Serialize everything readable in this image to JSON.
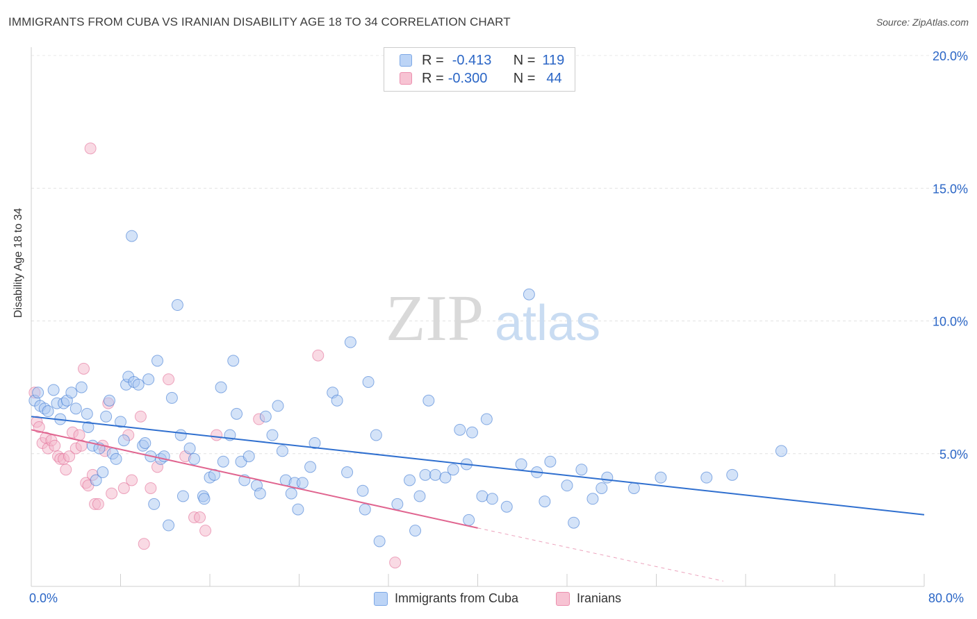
{
  "title": "IMMIGRANTS FROM CUBA VS IRANIAN DISABILITY AGE 18 TO 34 CORRELATION CHART",
  "source": "Source: ZipAtlas.com",
  "watermark": {
    "zip": "ZIP",
    "atlas": "atlas"
  },
  "legend_top": {
    "rows": [
      {
        "r_label": "R =",
        "r_value": "-0.413",
        "n_label": "N =",
        "n_value": "119"
      },
      {
        "r_label": "R =",
        "r_value": "-0.300",
        "n_label": "N =",
        "n_value": "44"
      }
    ]
  },
  "legend_bottom": {
    "series1": "Immigrants from Cuba",
    "series2": "Iranians"
  },
  "x_axis": {
    "min_label": "0.0%",
    "max_label": "80.0%"
  },
  "colors": {
    "blue": "#2f6fcf",
    "blue_fill": "#a9c8f2",
    "pink": "#e0648f",
    "pink_fill": "#f4b6ca",
    "tick_text": "#2b66c6"
  },
  "chart_data": {
    "type": "scatter",
    "title": "IMMIGRANTS FROM CUBA VS IRANIAN DISABILITY AGE 18 TO 34 CORRELATION CHART",
    "xlabel": "",
    "ylabel": "Disability Age 18 to 34",
    "xlim": [
      0,
      80
    ],
    "ylim": [
      0,
      20
    ],
    "y_ticks": [
      5,
      10,
      15,
      20
    ],
    "y_tick_labels": [
      "5.0%",
      "10.0%",
      "15.0%",
      "20.0%"
    ],
    "grid": true,
    "legend_position": "bottom",
    "series": [
      {
        "name": "Immigrants from Cuba",
        "color": "#2f6fcf",
        "r": -0.413,
        "n": 119,
        "trend": {
          "x": [
            0,
            80
          ],
          "y": [
            6.4,
            2.7
          ]
        },
        "points": [
          [
            0.3,
            7.0
          ],
          [
            0.6,
            7.3
          ],
          [
            0.8,
            6.8
          ],
          [
            1.2,
            6.7
          ],
          [
            1.5,
            6.6
          ],
          [
            2.0,
            7.4
          ],
          [
            2.3,
            6.9
          ],
          [
            2.6,
            6.3
          ],
          [
            2.9,
            6.9
          ],
          [
            3.2,
            7.0
          ],
          [
            3.6,
            7.3
          ],
          [
            4.0,
            6.7
          ],
          [
            4.5,
            7.5
          ],
          [
            5.1,
            6.0
          ],
          [
            5.0,
            6.5
          ],
          [
            5.5,
            5.3
          ],
          [
            5.8,
            4.0
          ],
          [
            6.1,
            5.2
          ],
          [
            6.4,
            4.3
          ],
          [
            6.7,
            6.4
          ],
          [
            7.0,
            7.0
          ],
          [
            7.3,
            5.0
          ],
          [
            7.6,
            4.8
          ],
          [
            8.0,
            6.2
          ],
          [
            8.3,
            5.5
          ],
          [
            8.5,
            7.6
          ],
          [
            8.7,
            7.9
          ],
          [
            9.0,
            13.2
          ],
          [
            9.2,
            7.7
          ],
          [
            9.6,
            7.6
          ],
          [
            10.0,
            5.3
          ],
          [
            10.2,
            5.4
          ],
          [
            10.5,
            7.8
          ],
          [
            10.7,
            4.9
          ],
          [
            11.0,
            3.1
          ],
          [
            11.3,
            8.5
          ],
          [
            11.6,
            4.8
          ],
          [
            11.9,
            4.9
          ],
          [
            12.3,
            2.3
          ],
          [
            12.6,
            7.1
          ],
          [
            13.1,
            10.6
          ],
          [
            13.4,
            5.7
          ],
          [
            13.6,
            3.4
          ],
          [
            14.2,
            5.2
          ],
          [
            14.6,
            4.8
          ],
          [
            15.4,
            3.4
          ],
          [
            15.5,
            3.3
          ],
          [
            16.0,
            4.1
          ],
          [
            16.4,
            4.2
          ],
          [
            17.2,
            4.7
          ],
          [
            17.0,
            7.5
          ],
          [
            17.8,
            5.7
          ],
          [
            18.1,
            8.5
          ],
          [
            18.4,
            6.5
          ],
          [
            18.8,
            4.7
          ],
          [
            19.1,
            4.0
          ],
          [
            19.5,
            4.9
          ],
          [
            20.2,
            3.8
          ],
          [
            20.5,
            3.5
          ],
          [
            21.0,
            6.4
          ],
          [
            21.6,
            5.7
          ],
          [
            22.1,
            6.8
          ],
          [
            22.8,
            4.0
          ],
          [
            22.5,
            5.1
          ],
          [
            23.3,
            3.5
          ],
          [
            23.6,
            3.9
          ],
          [
            23.9,
            2.9
          ],
          [
            24.3,
            3.9
          ],
          [
            25.0,
            4.5
          ],
          [
            25.4,
            5.4
          ],
          [
            27.0,
            7.3
          ],
          [
            27.4,
            7.0
          ],
          [
            28.3,
            4.3
          ],
          [
            28.6,
            9.2
          ],
          [
            29.7,
            3.6
          ],
          [
            29.9,
            2.9
          ],
          [
            30.2,
            7.7
          ],
          [
            30.9,
            5.7
          ],
          [
            31.2,
            1.7
          ],
          [
            32.8,
            3.1
          ],
          [
            33.9,
            4.0
          ],
          [
            34.4,
            2.1
          ],
          [
            34.8,
            3.4
          ],
          [
            35.3,
            4.2
          ],
          [
            35.6,
            7.0
          ],
          [
            36.2,
            4.2
          ],
          [
            37.1,
            4.1
          ],
          [
            37.8,
            4.4
          ],
          [
            38.4,
            5.9
          ],
          [
            39.0,
            4.6
          ],
          [
            39.5,
            5.8
          ],
          [
            39.2,
            2.5
          ],
          [
            40.4,
            3.4
          ],
          [
            40.8,
            6.3
          ],
          [
            41.3,
            3.3
          ],
          [
            42.6,
            3.0
          ],
          [
            43.9,
            4.6
          ],
          [
            44.6,
            11.0
          ],
          [
            45.3,
            4.3
          ],
          [
            46.0,
            3.2
          ],
          [
            46.5,
            4.7
          ],
          [
            48.0,
            3.8
          ],
          [
            48.6,
            2.4
          ],
          [
            49.3,
            4.4
          ],
          [
            50.3,
            3.3
          ],
          [
            51.1,
            3.7
          ],
          [
            51.6,
            4.1
          ],
          [
            54.0,
            3.7
          ],
          [
            56.4,
            4.1
          ],
          [
            60.5,
            4.1
          ],
          [
            62.8,
            4.2
          ],
          [
            67.2,
            5.1
          ]
        ]
      },
      {
        "name": "Iranians",
        "color": "#e0648f",
        "r": -0.3,
        "n": 44,
        "trend": {
          "x": [
            0,
            40
          ],
          "y": [
            5.9,
            2.2
          ]
        },
        "trend_dashed": {
          "x": [
            40,
            62
          ],
          "y": [
            2.2,
            0.2
          ]
        },
        "points": [
          [
            0.3,
            7.3
          ],
          [
            0.5,
            6.2
          ],
          [
            0.7,
            6.0
          ],
          [
            1.0,
            5.4
          ],
          [
            1.3,
            5.6
          ],
          [
            1.5,
            5.2
          ],
          [
            1.8,
            5.5
          ],
          [
            2.1,
            5.3
          ],
          [
            2.4,
            4.9
          ],
          [
            2.6,
            4.8
          ],
          [
            2.9,
            4.8
          ],
          [
            3.1,
            4.4
          ],
          [
            3.4,
            4.9
          ],
          [
            3.7,
            5.8
          ],
          [
            4.0,
            5.2
          ],
          [
            4.3,
            5.7
          ],
          [
            4.5,
            5.3
          ],
          [
            4.7,
            8.2
          ],
          [
            4.9,
            3.9
          ],
          [
            5.1,
            3.8
          ],
          [
            5.3,
            16.5
          ],
          [
            5.5,
            4.2
          ],
          [
            5.7,
            3.1
          ],
          [
            6.0,
            3.1
          ],
          [
            6.4,
            5.3
          ],
          [
            6.6,
            5.1
          ],
          [
            6.9,
            6.9
          ],
          [
            7.2,
            3.5
          ],
          [
            8.3,
            3.7
          ],
          [
            8.7,
            5.7
          ],
          [
            9.0,
            4.0
          ],
          [
            9.8,
            6.4
          ],
          [
            10.1,
            1.6
          ],
          [
            10.7,
            3.7
          ],
          [
            11.3,
            4.5
          ],
          [
            12.3,
            7.8
          ],
          [
            13.8,
            4.9
          ],
          [
            14.6,
            2.6
          ],
          [
            15.1,
            2.6
          ],
          [
            15.6,
            2.1
          ],
          [
            16.6,
            5.7
          ],
          [
            20.4,
            6.3
          ],
          [
            25.7,
            8.7
          ],
          [
            32.6,
            0.9
          ]
        ]
      }
    ]
  }
}
